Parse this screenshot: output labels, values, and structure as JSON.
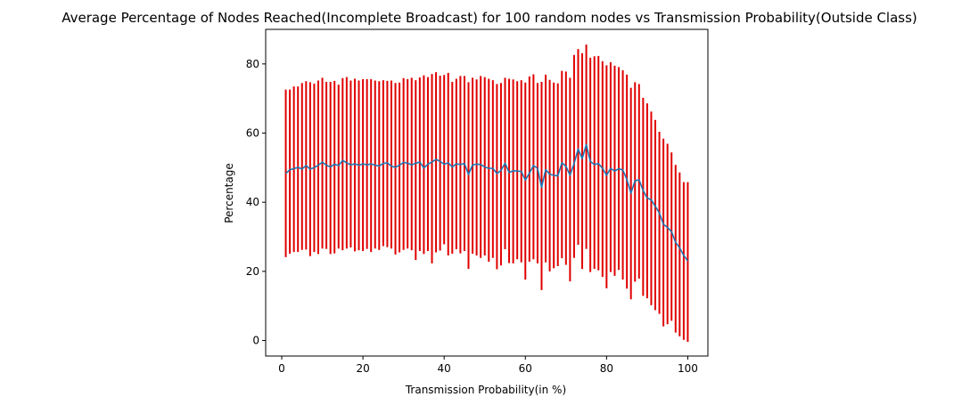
{
  "chart_data": {
    "type": "line",
    "title": "Average Percentage of Nodes Reached(Incomplete Broadcast) for 100 random nodes vs Transmission Probability(Outside Class)",
    "xlabel": "Transmission Probability(in %)",
    "ylabel": "Percentage",
    "xlim": [
      -3.95,
      104.95
    ],
    "ylim": [
      -4.5,
      90.0
    ],
    "xticks": [
      0,
      20,
      40,
      60,
      80,
      100
    ],
    "yticks": [
      0,
      20,
      40,
      60,
      80
    ],
    "grid": false,
    "legend": "none",
    "colors": {
      "mean_line": "#1f77b4",
      "error_bars": "#e00000"
    },
    "x": [
      1,
      2,
      3,
      4,
      5,
      6,
      7,
      8,
      9,
      10,
      11,
      12,
      13,
      14,
      15,
      16,
      17,
      18,
      19,
      20,
      21,
      22,
      23,
      24,
      25,
      26,
      27,
      28,
      29,
      30,
      31,
      32,
      33,
      34,
      35,
      36,
      37,
      38,
      39,
      40,
      41,
      42,
      43,
      44,
      45,
      46,
      47,
      48,
      49,
      50,
      51,
      52,
      53,
      54,
      55,
      56,
      57,
      58,
      59,
      60,
      61,
      62,
      63,
      64,
      65,
      66,
      67,
      68,
      69,
      70,
      71,
      72,
      73,
      74,
      75,
      76,
      77,
      78,
      79,
      80,
      81,
      82,
      83,
      84,
      85,
      86,
      87,
      88,
      89,
      90,
      91,
      92,
      93,
      94,
      95,
      96,
      97,
      98,
      99,
      100
    ],
    "series": [
      {
        "values": [
          48.3,
          49.4,
          49.7,
          50.1,
          49.6,
          50.6,
          49.6,
          50.0,
          50.7,
          51.6,
          50.7,
          50.2,
          51.0,
          50.6,
          52.1,
          51.4,
          50.8,
          51.1,
          50.7,
          51.1,
          50.8,
          51.1,
          50.7,
          50.5,
          51.2,
          51.4,
          50.4,
          50.1,
          50.7,
          51.5,
          51.3,
          50.8,
          51.3,
          51.6,
          49.9,
          51.0,
          51.6,
          52.4,
          51.8,
          51.0,
          51.4,
          50.2,
          51.1,
          50.9,
          51.2,
          48.0,
          50.8,
          51.0,
          50.9,
          50.2,
          49.8,
          49.8,
          48.3,
          49.2,
          51.3,
          48.6,
          49.1,
          49.0,
          48.9,
          46.4,
          48.4,
          50.6,
          49.8,
          44.3,
          49.4,
          48.1,
          47.8,
          47.6,
          51.4,
          50.4,
          47.8,
          51.2,
          55.4,
          52.6,
          56.7,
          51.8,
          50.9,
          51.2,
          49.8,
          47.8,
          49.8,
          49.0,
          49.7,
          49.3,
          46.6,
          42.6,
          46.2,
          46.5,
          43.4,
          41.2,
          40.7,
          38.8,
          36.9,
          33.6,
          32.7,
          31.5,
          28.4,
          26.8,
          24.6,
          23.0
        ],
        "lower": [
          24.1,
          25.1,
          25.6,
          25.6,
          26.2,
          26.3,
          24.4,
          25.6,
          25.0,
          26.6,
          26.5,
          25.0,
          25.2,
          26.6,
          26.1,
          26.6,
          26.9,
          25.8,
          26.1,
          25.9,
          26.5,
          25.6,
          26.6,
          26.2,
          27.3,
          27.0,
          26.6,
          24.9,
          25.5,
          26.2,
          26.6,
          26.1,
          23.3,
          25.9,
          25.0,
          25.9,
          22.3,
          25.5,
          26.0,
          27.8,
          24.6,
          25.1,
          26.4,
          25.2,
          25.9,
          20.7,
          25.1,
          24.6,
          23.9,
          24.6,
          22.8,
          23.9,
          20.6,
          21.7,
          26.4,
          22.4,
          22.3,
          23.5,
          22.6,
          17.6,
          22.8,
          23.5,
          22.3,
          14.6,
          22.6,
          20.0,
          20.9,
          21.5,
          23.8,
          21.9,
          17.1,
          23.9,
          27.7,
          20.7,
          26.5,
          19.8,
          20.7,
          20.3,
          18.4,
          15.1,
          19.8,
          18.7,
          20.4,
          17.6,
          15.0,
          11.9,
          17.0,
          17.9,
          12.9,
          12.2,
          10.2,
          8.8,
          7.7,
          4.1,
          4.7,
          5.7,
          2.3,
          1.2,
          0.2,
          -0.4
        ],
        "upper": [
          72.6,
          72.6,
          73.5,
          73.5,
          74.5,
          75.0,
          74.7,
          74.3,
          75.2,
          76.0,
          74.8,
          74.8,
          75.1,
          74.0,
          75.9,
          76.2,
          75.2,
          75.7,
          75.2,
          75.6,
          75.6,
          75.6,
          75.2,
          75.0,
          75.3,
          75.1,
          75.2,
          74.5,
          74.6,
          75.9,
          75.6,
          76.0,
          75.3,
          76.1,
          76.7,
          76.2,
          77.1,
          77.6,
          76.6,
          76.8,
          77.4,
          74.8,
          75.7,
          76.5,
          76.5,
          74.7,
          76.0,
          75.5,
          76.5,
          76.2,
          75.7,
          75.3,
          74.2,
          74.5,
          76.0,
          75.7,
          75.5,
          75.0,
          75.3,
          74.6,
          76.4,
          77.0,
          74.5,
          74.8,
          76.9,
          75.4,
          74.6,
          74.4,
          78.0,
          77.8,
          76.0,
          82.6,
          84.3,
          83.1,
          85.6,
          81.8,
          82.2,
          82.3,
          80.8,
          79.6,
          80.5,
          79.5,
          79.1,
          78.2,
          76.9,
          73.1,
          74.7,
          74.2,
          70.2,
          68.6,
          66.2,
          63.8,
          60.4,
          58.4,
          56.9,
          54.4,
          50.8,
          48.6,
          45.8,
          45.8
        ]
      }
    ]
  }
}
